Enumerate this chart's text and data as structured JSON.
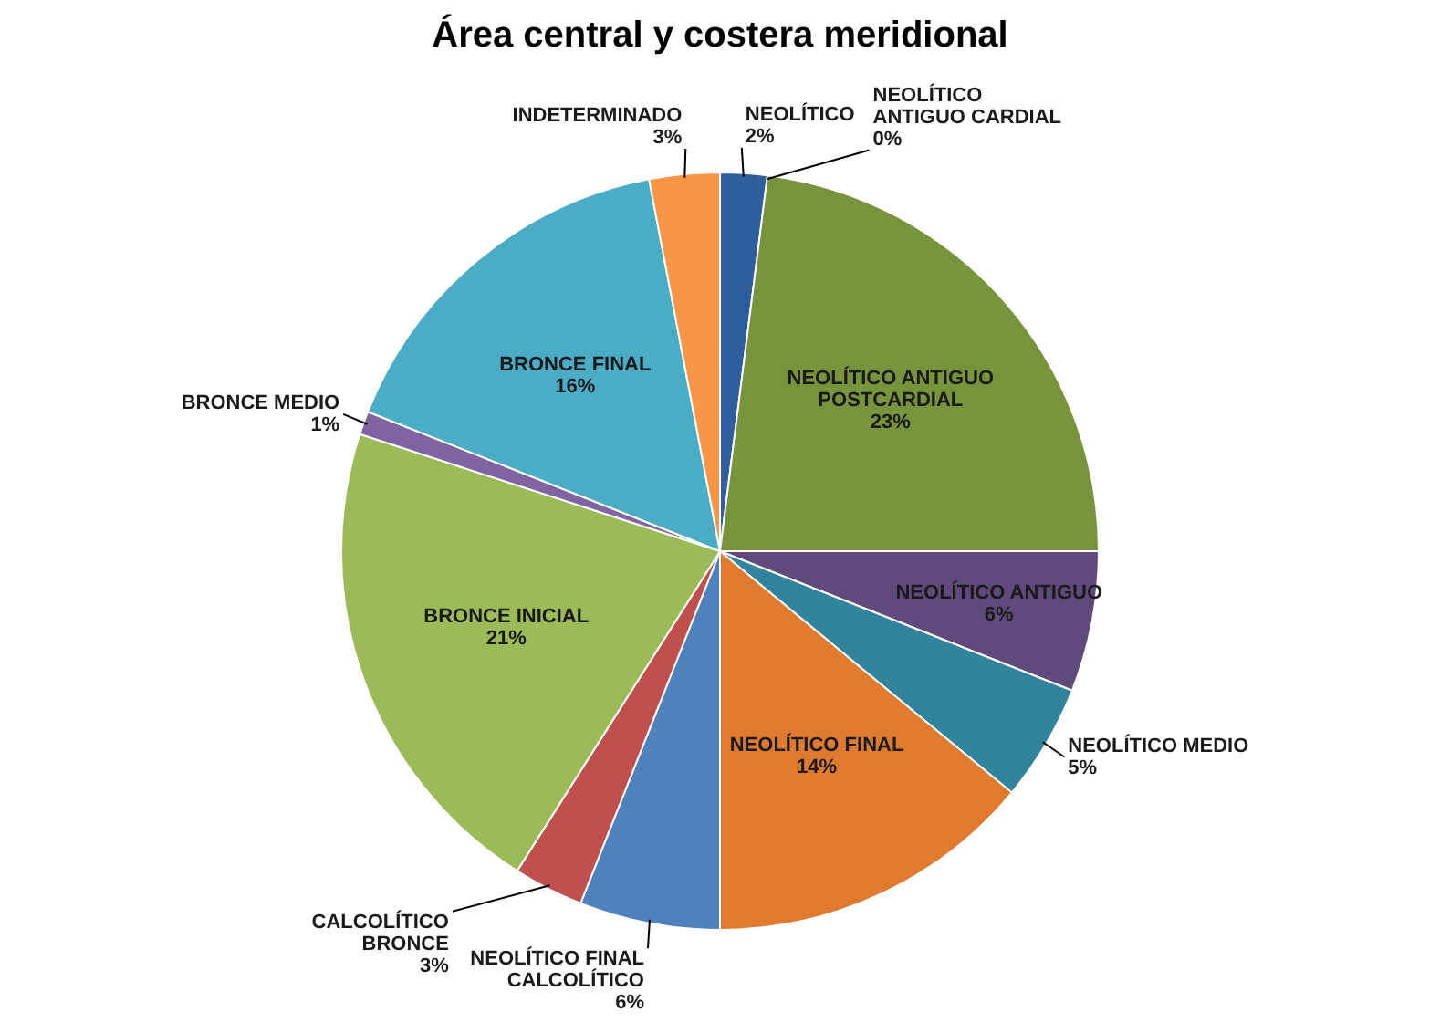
{
  "chart_data": {
    "type": "pie",
    "title": "Área central y costera meridional",
    "categories": [
      "NEOLÍTICO",
      "NEOLÍTICO ANTIGUO CARDIAL",
      "NEOLÍTICO ANTIGUO POSTCARDIAL",
      "NEOLÍTICO ANTIGUO",
      "NEOLÍTICO MEDIO",
      "NEOLÍTICO FINAL",
      "NEOLÍTICO FINAL CALCOLÍTICO",
      "CALCOLÍTICO BRONCE",
      "BRONCE INICIAL",
      "BRONCE MEDIO",
      "BRONCE FINAL",
      "INDETERMINADO"
    ],
    "values": [
      2,
      0,
      23,
      6,
      5,
      14,
      6,
      3,
      21,
      1,
      16,
      3
    ],
    "colors": [
      "#2e5f9c",
      "#c0392b",
      "#77933c",
      "#604a7b",
      "#31849b",
      "#e07a2f",
      "#4f81bd",
      "#c0504d",
      "#9bbb59",
      "#8064a2",
      "#4bacc6",
      "#f79646"
    ],
    "value_labels": [
      "2%",
      "0%",
      "23%",
      "6%",
      "5%",
      "14%",
      "6%",
      "3%",
      "21%",
      "1%",
      "16%",
      "3%"
    ],
    "legend": false
  }
}
